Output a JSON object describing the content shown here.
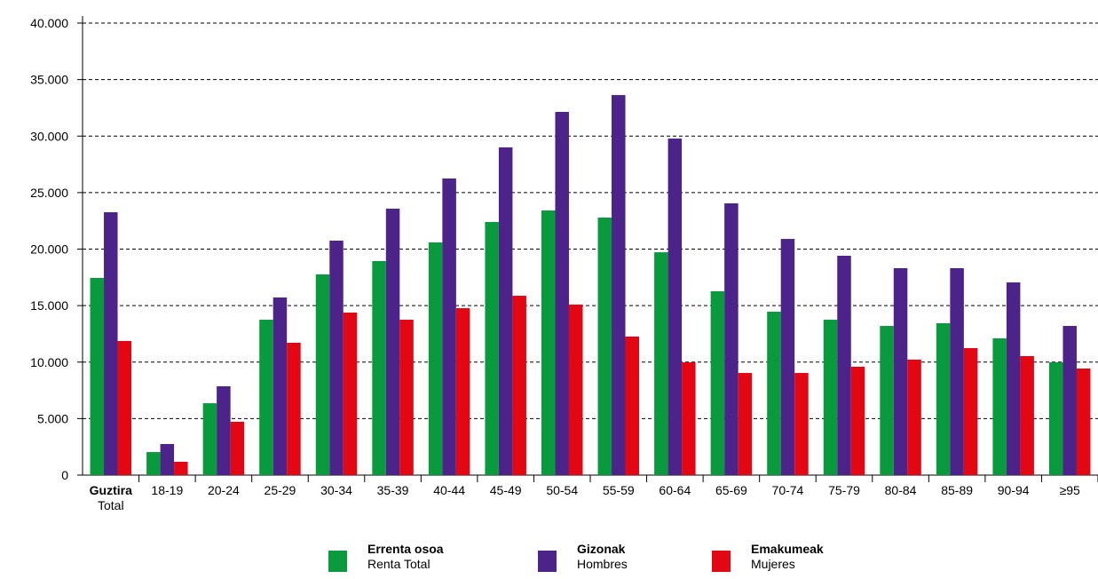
{
  "chart_data": {
    "type": "bar",
    "categories": [
      "Guztira\nTotal",
      "18-19",
      "20-24",
      "25-29",
      "30-34",
      "35-39",
      "40-44",
      "45-49",
      "50-54",
      "55-59",
      "60-64",
      "65-69",
      "70-74",
      "75-79",
      "80-84",
      "85-89",
      "90-94",
      "≥95"
    ],
    "series": [
      {
        "name": "Errenta osoa\nRenta Total",
        "color": "#0a9a3e",
        "values": [
          17450,
          2040,
          6360,
          13750,
          17760,
          18940,
          20590,
          22400,
          23420,
          22790,
          19720,
          16270,
          14460,
          13750,
          13200,
          13440,
          12100,
          9980
        ]
      },
      {
        "name": "Gizonak\nHombres",
        "color": "#4b2389",
        "values": [
          23260,
          2750,
          7860,
          15720,
          20750,
          23580,
          26250,
          29000,
          32140,
          33630,
          29780,
          24050,
          20900,
          19410,
          18310,
          18310,
          17050,
          13200
        ]
      },
      {
        "name": "Emakumeak\nMujeres",
        "color": "#e30613",
        "values": [
          11870,
          1180,
          4720,
          11710,
          14380,
          13750,
          14770,
          15870,
          15090,
          12260,
          9980,
          9040,
          9040,
          9590,
          10220,
          11240,
          10530,
          9430
        ]
      }
    ],
    "ylim": [
      0,
      40000
    ],
    "yticks": [
      0,
      {
        "value": 5000,
        "label": "5.000"
      },
      {
        "value": 10000,
        "label": "10.000"
      },
      {
        "value": 15000,
        "label": "15.000"
      },
      {
        "value": 20000,
        "label": "20.000"
      },
      {
        "value": 25000,
        "label": "25.000"
      },
      {
        "value": 30000,
        "label": "30.000"
      },
      {
        "value": 35000,
        "label": "35.000"
      },
      {
        "value": 40000,
        "label": "40.000"
      }
    ],
    "grid": true,
    "legend": "bottom"
  }
}
